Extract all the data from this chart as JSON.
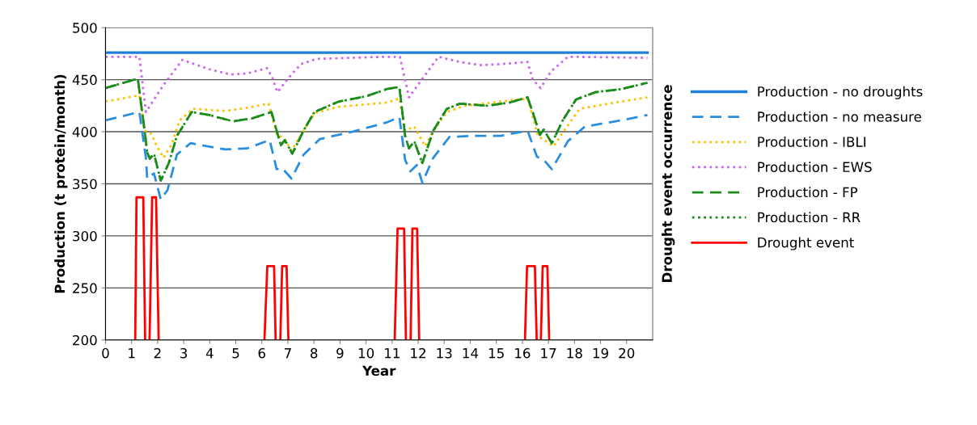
{
  "chart_data": {
    "type": "line",
    "xlabel": "Year",
    "ylabel": "Production (t protein/month)",
    "y2label": "Drought event occurrence",
    "xlim": [
      0,
      21
    ],
    "xticks": [
      0,
      1,
      2,
      3,
      4,
      5,
      6,
      7,
      8,
      9,
      10,
      11,
      12,
      13,
      14,
      15,
      16,
      17,
      18,
      19,
      20
    ],
    "ylim": [
      200,
      500
    ],
    "yticks": [
      200,
      250,
      300,
      350,
      400,
      450,
      500
    ],
    "grid": "y",
    "legend": "right",
    "marker": "none",
    "series": [
      {
        "name": "Production - no droughts",
        "color": "#1f7fd8",
        "line_style": "solid",
        "x": [
          0,
          20.8
        ],
        "values": [
          476,
          476
        ]
      },
      {
        "name": "Production - no measure",
        "color": "#2a8ee0",
        "line_style": "dashed",
        "x": [
          0,
          1.3,
          1.55,
          1.6,
          1.86,
          2.12,
          2.38,
          2.74,
          3.26,
          4.6,
          5.43,
          6.3,
          6.57,
          6.78,
          7.14,
          7.6,
          8.23,
          9.47,
          10.8,
          11.28,
          11.5,
          11.7,
          11.95,
          12.16,
          12.58,
          13.2,
          14.1,
          15.15,
          16.2,
          16.56,
          16.82,
          17.13,
          17.75,
          18.4,
          19.8,
          20.8
        ],
        "values": [
          411,
          419,
          375,
          355,
          360,
          335,
          344,
          378,
          389,
          383,
          384,
          392,
          364,
          365,
          355,
          378,
          393,
          400,
          409,
          414,
          373,
          362,
          368,
          351,
          375,
          395,
          396,
          396,
          401,
          376,
          373,
          364,
          391,
          405,
          411,
          416
        ]
      },
      {
        "name": "Production - IBLI",
        "color": "#ffc000",
        "line_style": "dotted",
        "x": [
          0,
          1.3,
          1.5,
          1.76,
          1.97,
          2.23,
          2.54,
          2.85,
          3.36,
          4.6,
          5.43,
          6.26,
          6.57,
          6.88,
          7.14,
          7.6,
          8.02,
          8.95,
          10.8,
          11.28,
          11.5,
          11.85,
          12.27,
          12.58,
          13.1,
          13.8,
          16.2,
          16.6,
          17.2,
          17.6,
          18.2,
          19.3,
          20.8
        ],
        "values": [
          429,
          435,
          401,
          398,
          386,
          375,
          388,
          411,
          422,
          420,
          423,
          427,
          398,
          393,
          382,
          401,
          418,
          424,
          428,
          432,
          401,
          405,
          386,
          401,
          419,
          425,
          432,
          396,
          386,
          401,
          422,
          427,
          433
        ]
      },
      {
        "name": "Production - EWS",
        "color": "#cc66ee",
        "line_style": "dotted",
        "x": [
          0,
          1.3,
          1.55,
          2.23,
          2.95,
          3.99,
          4.8,
          5.43,
          6.2,
          6.4,
          6.6,
          7.0,
          7.5,
          8.1,
          10.7,
          11.3,
          11.65,
          12.05,
          12.78,
          13.6,
          14.4,
          15.2,
          16.2,
          16.4,
          16.7,
          17.1,
          17.75,
          20.8
        ],
        "values": [
          472,
          472,
          419,
          445,
          469,
          460,
          455,
          456,
          461,
          452,
          438,
          451,
          465,
          470,
          472,
          472,
          433,
          447,
          472,
          467,
          464,
          465,
          467,
          450,
          442,
          458,
          472,
          471
        ]
      },
      {
        "name": "Production - FP",
        "color": "#1a8c1a",
        "line_style": "dashed",
        "x": [
          0,
          1.24,
          1.5,
          1.6,
          1.7,
          1.86,
          2.12,
          2.43,
          2.74,
          3.31,
          3.99,
          4.9,
          5.64,
          6.37,
          6.57,
          6.73,
          6.88,
          7.17,
          7.6,
          8.02,
          8.95,
          10.0,
          10.8,
          11.28,
          11.5,
          11.65,
          11.85,
          12.16,
          12.58,
          13.1,
          13.6,
          14.65,
          15.5,
          16.2,
          16.46,
          16.67,
          16.82,
          17.13,
          17.55,
          18.06,
          18.8,
          19.8,
          20.8
        ],
        "values": [
          442,
          451,
          401,
          380,
          374,
          379,
          353,
          370,
          396,
          419,
          416,
          410,
          413,
          419,
          401,
          387,
          392,
          379,
          401,
          419,
          429,
          434,
          441,
          443,
          396,
          384,
          391,
          370,
          401,
          422,
          427,
          425,
          428,
          433,
          414,
          397,
          402,
          389,
          411,
          431,
          438,
          441,
          447
        ]
      },
      {
        "name": "Production - RR",
        "color": "#1a8c1a",
        "line_style": "dotted",
        "x": [
          0,
          1.24,
          1.5,
          1.6,
          1.7,
          1.86,
          2.12,
          2.43,
          2.74,
          3.31,
          3.99,
          4.9,
          5.64,
          6.37,
          6.57,
          6.73,
          6.88,
          7.17,
          7.6,
          8.02,
          8.95,
          10.0,
          10.8,
          11.28,
          11.5,
          11.65,
          11.85,
          12.16,
          12.58,
          13.1,
          13.6,
          14.65,
          15.5,
          16.2,
          16.46,
          16.67,
          16.82,
          17.13,
          17.55,
          18.06,
          18.8,
          19.8,
          20.8
        ],
        "values": [
          442,
          451,
          401,
          380,
          374,
          379,
          353,
          370,
          396,
          419,
          416,
          410,
          413,
          419,
          401,
          387,
          392,
          379,
          401,
          419,
          429,
          434,
          441,
          443,
          396,
          384,
          391,
          370,
          401,
          422,
          427,
          425,
          428,
          433,
          414,
          397,
          402,
          389,
          411,
          431,
          438,
          441,
          447
        ]
      },
      {
        "name": "Drought event",
        "color": "#ff0000",
        "line_style": "solid",
        "x": [
          1.14,
          1.19,
          1.45,
          1.52,
          1.6,
          1.69,
          1.79,
          1.94,
          2.04,
          4,
          6.1,
          6.21,
          6.47,
          6.53,
          6.6,
          6.71,
          6.78,
          6.95,
          7.02,
          9,
          11.1,
          11.21,
          11.46,
          11.53,
          11.6,
          11.71,
          11.78,
          11.96,
          12.04,
          14,
          16.1,
          16.18,
          16.48,
          16.55,
          16.6,
          16.71,
          16.78,
          16.96,
          17.03
        ],
        "values": [
          200,
          337,
          337,
          200,
          null,
          200,
          337,
          337,
          200,
          null,
          200,
          271,
          271,
          200,
          null,
          200,
          271,
          271,
          200,
          null,
          200,
          307,
          307,
          200,
          null,
          200,
          307,
          307,
          200,
          null,
          200,
          271,
          271,
          200,
          null,
          200,
          271,
          271,
          200
        ]
      }
    ]
  }
}
